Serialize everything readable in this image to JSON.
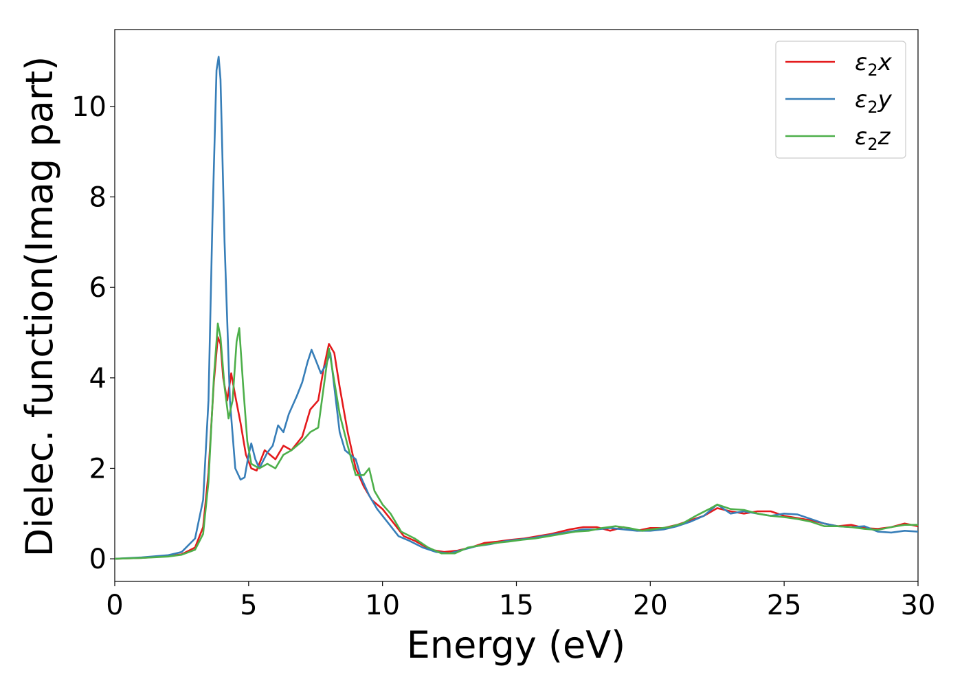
{
  "chart_data": {
    "type": "line",
    "title": "",
    "xlabel": "Energy (eV)",
    "ylabel": "Dielec. function(Imag part)",
    "xlim": [
      0,
      30
    ],
    "ylim": [
      -0.5,
      11.7
    ],
    "xticks": [
      "0",
      "5",
      "10",
      "15",
      "20",
      "25",
      "30"
    ],
    "yticks": [
      "0",
      "2",
      "4",
      "6",
      "8",
      "10"
    ],
    "grid": false,
    "legend_position": "top-right",
    "series": [
      {
        "name": "ε2x",
        "legend_base": "ε",
        "legend_sub": "2",
        "legend_var": "x",
        "color": "#e41a1c",
        "points": [
          [
            0,
            0
          ],
          [
            1,
            0.02
          ],
          [
            2,
            0.06
          ],
          [
            2.5,
            0.1
          ],
          [
            3,
            0.25
          ],
          [
            3.3,
            0.7
          ],
          [
            3.5,
            1.9
          ],
          [
            3.7,
            3.9
          ],
          [
            3.85,
            4.9
          ],
          [
            3.95,
            4.75
          ],
          [
            4.05,
            4.0
          ],
          [
            4.2,
            3.5
          ],
          [
            4.35,
            4.1
          ],
          [
            4.5,
            3.6
          ],
          [
            4.7,
            3.0
          ],
          [
            4.9,
            2.3
          ],
          [
            5.1,
            2.0
          ],
          [
            5.3,
            1.95
          ],
          [
            5.6,
            2.4
          ],
          [
            5.8,
            2.3
          ],
          [
            6.0,
            2.2
          ],
          [
            6.3,
            2.5
          ],
          [
            6.6,
            2.4
          ],
          [
            7.0,
            2.7
          ],
          [
            7.3,
            3.3
          ],
          [
            7.6,
            3.5
          ],
          [
            7.8,
            4.2
          ],
          [
            8.0,
            4.75
          ],
          [
            8.2,
            4.55
          ],
          [
            8.4,
            3.8
          ],
          [
            8.7,
            2.8
          ],
          [
            9.0,
            2.0
          ],
          [
            9.3,
            1.6
          ],
          [
            9.6,
            1.3
          ],
          [
            10.0,
            1.1
          ],
          [
            10.4,
            0.8
          ],
          [
            10.8,
            0.5
          ],
          [
            11.2,
            0.4
          ],
          [
            11.8,
            0.2
          ],
          [
            12.3,
            0.15
          ],
          [
            12.8,
            0.18
          ],
          [
            13.3,
            0.25
          ],
          [
            13.8,
            0.35
          ],
          [
            14.3,
            0.38
          ],
          [
            14.8,
            0.42
          ],
          [
            15.3,
            0.45
          ],
          [
            15.8,
            0.5
          ],
          [
            16.3,
            0.55
          ],
          [
            17.0,
            0.65
          ],
          [
            17.5,
            0.7
          ],
          [
            18.0,
            0.7
          ],
          [
            18.5,
            0.62
          ],
          [
            19.0,
            0.7
          ],
          [
            19.5,
            0.62
          ],
          [
            20.0,
            0.68
          ],
          [
            20.5,
            0.68
          ],
          [
            21.0,
            0.75
          ],
          [
            21.5,
            0.85
          ],
          [
            22.0,
            0.95
          ],
          [
            22.5,
            1.12
          ],
          [
            23.0,
            1.05
          ],
          [
            23.5,
            1.0
          ],
          [
            24.0,
            1.05
          ],
          [
            24.5,
            1.05
          ],
          [
            25.0,
            0.95
          ],
          [
            25.5,
            0.9
          ],
          [
            26.0,
            0.85
          ],
          [
            26.5,
            0.78
          ],
          [
            27.0,
            0.72
          ],
          [
            27.5,
            0.75
          ],
          [
            28.0,
            0.68
          ],
          [
            28.5,
            0.66
          ],
          [
            29.0,
            0.7
          ],
          [
            29.5,
            0.78
          ],
          [
            30.0,
            0.72
          ]
        ]
      },
      {
        "name": "ε2y",
        "legend_base": "ε",
        "legend_sub": "2",
        "legend_var": "y",
        "color": "#377eb8",
        "points": [
          [
            0,
            0
          ],
          [
            1,
            0.03
          ],
          [
            2,
            0.08
          ],
          [
            2.5,
            0.15
          ],
          [
            3.0,
            0.45
          ],
          [
            3.3,
            1.3
          ],
          [
            3.5,
            3.5
          ],
          [
            3.65,
            7.5
          ],
          [
            3.8,
            10.8
          ],
          [
            3.88,
            11.1
          ],
          [
            3.95,
            10.6
          ],
          [
            4.1,
            7.0
          ],
          [
            4.3,
            3.5
          ],
          [
            4.5,
            2.0
          ],
          [
            4.7,
            1.75
          ],
          [
            4.85,
            1.8
          ],
          [
            5.0,
            2.3
          ],
          [
            5.1,
            2.55
          ],
          [
            5.25,
            2.2
          ],
          [
            5.4,
            2.0
          ],
          [
            5.7,
            2.35
          ],
          [
            5.9,
            2.5
          ],
          [
            6.1,
            2.95
          ],
          [
            6.3,
            2.8
          ],
          [
            6.5,
            3.2
          ],
          [
            6.8,
            3.6
          ],
          [
            7.0,
            3.9
          ],
          [
            7.2,
            4.35
          ],
          [
            7.35,
            4.62
          ],
          [
            7.5,
            4.4
          ],
          [
            7.7,
            4.1
          ],
          [
            7.9,
            4.3
          ],
          [
            8.05,
            4.55
          ],
          [
            8.2,
            3.8
          ],
          [
            8.4,
            2.8
          ],
          [
            8.6,
            2.4
          ],
          [
            8.8,
            2.3
          ],
          [
            9.0,
            2.2
          ],
          [
            9.2,
            1.8
          ],
          [
            9.5,
            1.4
          ],
          [
            9.8,
            1.1
          ],
          [
            10.2,
            0.8
          ],
          [
            10.6,
            0.5
          ],
          [
            11.0,
            0.4
          ],
          [
            11.5,
            0.25
          ],
          [
            12.0,
            0.15
          ],
          [
            12.5,
            0.12
          ],
          [
            13.0,
            0.2
          ],
          [
            13.5,
            0.28
          ],
          [
            14.0,
            0.32
          ],
          [
            14.5,
            0.38
          ],
          [
            15.0,
            0.42
          ],
          [
            15.5,
            0.45
          ],
          [
            16.0,
            0.5
          ],
          [
            16.5,
            0.55
          ],
          [
            17.0,
            0.6
          ],
          [
            17.5,
            0.65
          ],
          [
            18.0,
            0.65
          ],
          [
            18.5,
            0.68
          ],
          [
            19.0,
            0.65
          ],
          [
            19.5,
            0.62
          ],
          [
            20.0,
            0.62
          ],
          [
            20.5,
            0.65
          ],
          [
            21.0,
            0.72
          ],
          [
            21.5,
            0.82
          ],
          [
            22.0,
            0.95
          ],
          [
            22.5,
            1.2
          ],
          [
            23.0,
            1.0
          ],
          [
            23.5,
            1.05
          ],
          [
            24.0,
            1.0
          ],
          [
            24.5,
            0.95
          ],
          [
            25.0,
            1.0
          ],
          [
            25.5,
            0.98
          ],
          [
            26.0,
            0.88
          ],
          [
            26.5,
            0.78
          ],
          [
            27.0,
            0.72
          ],
          [
            27.5,
            0.7
          ],
          [
            28.0,
            0.72
          ],
          [
            28.5,
            0.6
          ],
          [
            29.0,
            0.58
          ],
          [
            29.5,
            0.62
          ],
          [
            30.0,
            0.6
          ]
        ]
      },
      {
        "name": "ε2z",
        "legend_base": "ε",
        "legend_sub": "2",
        "legend_var": "z",
        "color": "#4daf4a",
        "points": [
          [
            0,
            0
          ],
          [
            1,
            0.02
          ],
          [
            2,
            0.05
          ],
          [
            2.5,
            0.09
          ],
          [
            3.0,
            0.2
          ],
          [
            3.3,
            0.55
          ],
          [
            3.5,
            1.7
          ],
          [
            3.7,
            4.0
          ],
          [
            3.85,
            5.2
          ],
          [
            3.95,
            4.9
          ],
          [
            4.1,
            3.8
          ],
          [
            4.25,
            3.1
          ],
          [
            4.4,
            3.5
          ],
          [
            4.55,
            4.8
          ],
          [
            4.65,
            5.1
          ],
          [
            4.8,
            3.8
          ],
          [
            4.95,
            2.6
          ],
          [
            5.1,
            2.1
          ],
          [
            5.4,
            2.0
          ],
          [
            5.7,
            2.1
          ],
          [
            6.0,
            2.0
          ],
          [
            6.3,
            2.3
          ],
          [
            6.6,
            2.4
          ],
          [
            7.0,
            2.6
          ],
          [
            7.3,
            2.8
          ],
          [
            7.6,
            2.9
          ],
          [
            7.85,
            4.0
          ],
          [
            8.0,
            4.65
          ],
          [
            8.15,
            4.1
          ],
          [
            8.4,
            3.2
          ],
          [
            8.7,
            2.5
          ],
          [
            9.0,
            1.85
          ],
          [
            9.3,
            1.85
          ],
          [
            9.5,
            2.0
          ],
          [
            9.7,
            1.5
          ],
          [
            10.0,
            1.2
          ],
          [
            10.3,
            1.0
          ],
          [
            10.7,
            0.6
          ],
          [
            11.2,
            0.45
          ],
          [
            11.7,
            0.25
          ],
          [
            12.2,
            0.12
          ],
          [
            12.7,
            0.12
          ],
          [
            13.2,
            0.25
          ],
          [
            13.7,
            0.3
          ],
          [
            14.2,
            0.35
          ],
          [
            14.7,
            0.38
          ],
          [
            15.2,
            0.42
          ],
          [
            15.7,
            0.45
          ],
          [
            16.2,
            0.5
          ],
          [
            16.7,
            0.55
          ],
          [
            17.2,
            0.6
          ],
          [
            17.7,
            0.62
          ],
          [
            18.2,
            0.68
          ],
          [
            18.7,
            0.72
          ],
          [
            19.2,
            0.68
          ],
          [
            19.7,
            0.62
          ],
          [
            20.2,
            0.66
          ],
          [
            20.7,
            0.7
          ],
          [
            21.2,
            0.78
          ],
          [
            21.7,
            0.95
          ],
          [
            22.2,
            1.1
          ],
          [
            22.5,
            1.2
          ],
          [
            23.0,
            1.1
          ],
          [
            23.5,
            1.08
          ],
          [
            24.0,
            1.0
          ],
          [
            24.5,
            0.95
          ],
          [
            25.0,
            0.92
          ],
          [
            25.5,
            0.88
          ],
          [
            26.0,
            0.82
          ],
          [
            26.5,
            0.72
          ],
          [
            27.0,
            0.72
          ],
          [
            27.5,
            0.7
          ],
          [
            28.0,
            0.66
          ],
          [
            28.5,
            0.64
          ],
          [
            29.0,
            0.7
          ],
          [
            29.5,
            0.75
          ],
          [
            30.0,
            0.75
          ]
        ]
      }
    ]
  }
}
